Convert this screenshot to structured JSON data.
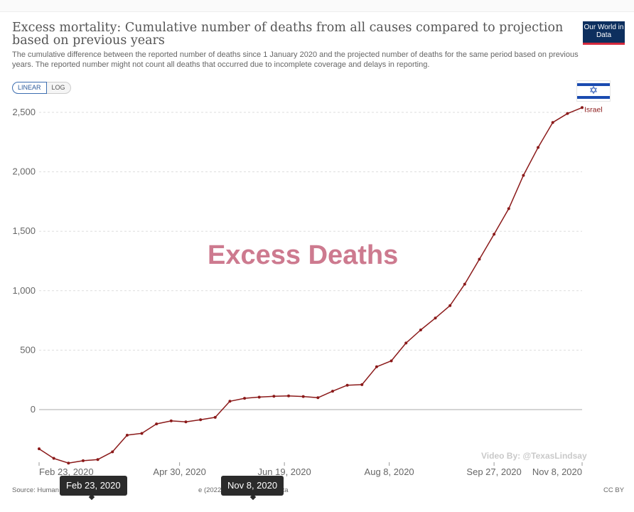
{
  "header": {
    "title": "Excess mortality: Cumulative number of deaths from all causes compared to projection based on previous years",
    "subtitle": "The cumulative difference between the reported number of deaths since 1 January 2020 and the projected number of deaths for the same period based on previous years. The reported number might not count all deaths that occurred due to incomplete coverage and delays in reporting.",
    "logo": "Our World in Data"
  },
  "scale_toggle": {
    "linear_label": "LINEAR",
    "log_label": "LOG",
    "selected": "LINEAR"
  },
  "watermark": "Excess Deaths",
  "video_credit": "Video By: @TexasLindsay",
  "footer": {
    "source_left": "Source: Human",
    "source_right": "e (2022), World Mortality Data",
    "license": "CC BY"
  },
  "timeline": {
    "start_label": "Feb 23, 2020",
    "end_label": "Nov 8, 2020"
  },
  "colors": {
    "series": "#8b1a1a",
    "title": "#555555",
    "watermark": "#cd7a8f",
    "logo_bg": "#0d2f5e"
  },
  "chart_data": {
    "type": "line",
    "title": "Excess mortality: Cumulative number of deaths from all causes compared to projection based on previous years",
    "xlabel": "",
    "ylabel": "",
    "ylim": [
      -450,
      2500
    ],
    "yticks": [
      0,
      500,
      1000,
      1500,
      2000,
      2500
    ],
    "ytick_labels": [
      "0",
      "500",
      "1,000",
      "1,500",
      "2,000",
      "2,500"
    ],
    "xticks": [
      "2020-02-23",
      "2020-04-30",
      "2020-06-19",
      "2020-08-08",
      "2020-09-27",
      "2020-11-08"
    ],
    "xtick_labels": [
      "Feb 23, 2020",
      "Apr 30, 2020",
      "Jun 19, 2020",
      "Aug 8, 2020",
      "Sep 27, 2020",
      "Nov 8, 2020"
    ],
    "x_start": "2020-02-23",
    "x_end": "2020-11-08",
    "grid": true,
    "scale": "linear",
    "series": [
      {
        "name": "Israel",
        "x": [
          "2020-02-23",
          "2020-03-01",
          "2020-03-08",
          "2020-03-15",
          "2020-03-22",
          "2020-03-29",
          "2020-04-05",
          "2020-04-12",
          "2020-04-19",
          "2020-04-26",
          "2020-05-03",
          "2020-05-10",
          "2020-05-17",
          "2020-05-24",
          "2020-05-31",
          "2020-06-07",
          "2020-06-14",
          "2020-06-21",
          "2020-06-28",
          "2020-07-05",
          "2020-07-12",
          "2020-07-19",
          "2020-07-26",
          "2020-08-02",
          "2020-08-09",
          "2020-08-16",
          "2020-08-23",
          "2020-08-30",
          "2020-09-06",
          "2020-09-13",
          "2020-09-20",
          "2020-09-27",
          "2020-10-04",
          "2020-10-11",
          "2020-10-18",
          "2020-10-25",
          "2020-11-01",
          "2020-11-08"
        ],
        "values": [
          -330,
          -410,
          -450,
          -430,
          -420,
          -355,
          -215,
          -200,
          -120,
          -95,
          -103,
          -85,
          -65,
          70,
          95,
          105,
          112,
          115,
          110,
          100,
          155,
          205,
          210,
          360,
          410,
          560,
          670,
          770,
          875,
          1055,
          1265,
          1475,
          1690,
          1970,
          2205,
          2415,
          2490,
          2540
        ]
      }
    ]
  }
}
